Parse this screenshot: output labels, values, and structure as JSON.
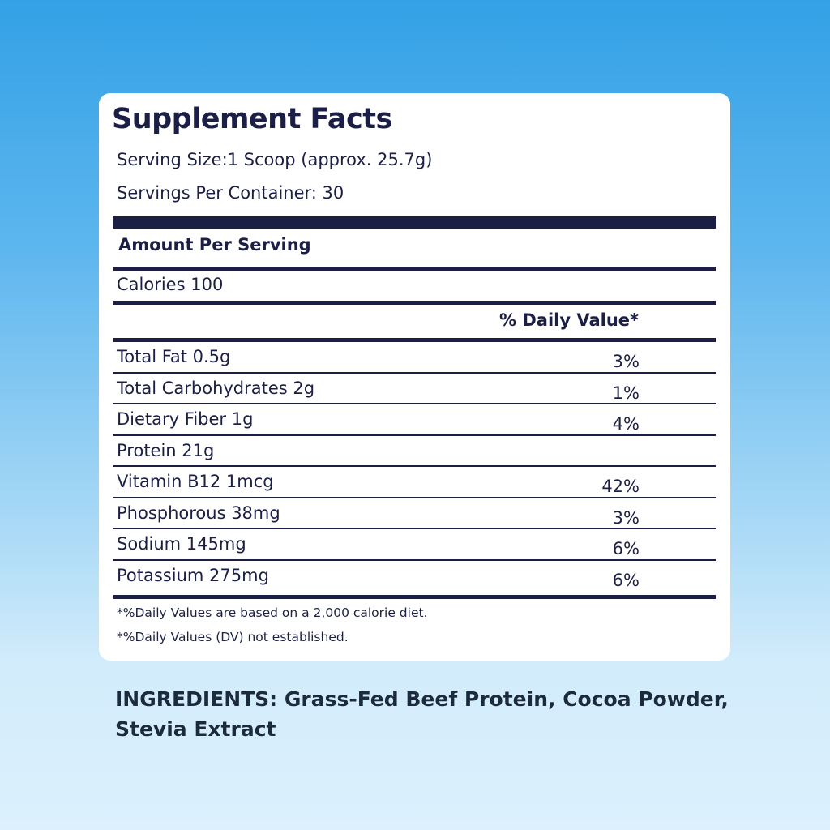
{
  "label": {
    "title": "Supplement Facts",
    "serving_size": "Serving Size:1 Scoop (approx. 25.7g)",
    "servings_per_container": "Servings Per Container: 30",
    "amount_per_serving": "Amount Per Serving",
    "calories": "Calories 100",
    "daily_value_header": "% Daily Value*",
    "rows": [
      {
        "name": "Total Fat 0.5g",
        "dv": "3%"
      },
      {
        "name": "Total Carbohydrates 2g",
        "dv": "1%"
      },
      {
        "name": "Dietary Fiber 1g",
        "dv": "4%"
      },
      {
        "name": "Protein 21g",
        "dv": ""
      },
      {
        "name": "Vitamin B12  1mcg",
        "dv": "42%"
      },
      {
        "name": "Phosphorous 38mg",
        "dv": "3%"
      },
      {
        "name": "Sodium 145mg",
        "dv": "6%"
      },
      {
        "name": "Potassium 275mg",
        "dv": "6%"
      }
    ],
    "footnote_1": "*%Daily Values are based on a 2,000 calorie diet.",
    "footnote_2": "*%Daily Values (DV) not established."
  },
  "ingredients": "INGREDIENTS: Grass-Fed Beef Protein, Cocoa Powder, Stevia Extract",
  "colors": {
    "text": "#1c1f45",
    "background_top": "#33a1e6",
    "background_bottom": "#dcf0fd",
    "panel": "#ffffff"
  }
}
